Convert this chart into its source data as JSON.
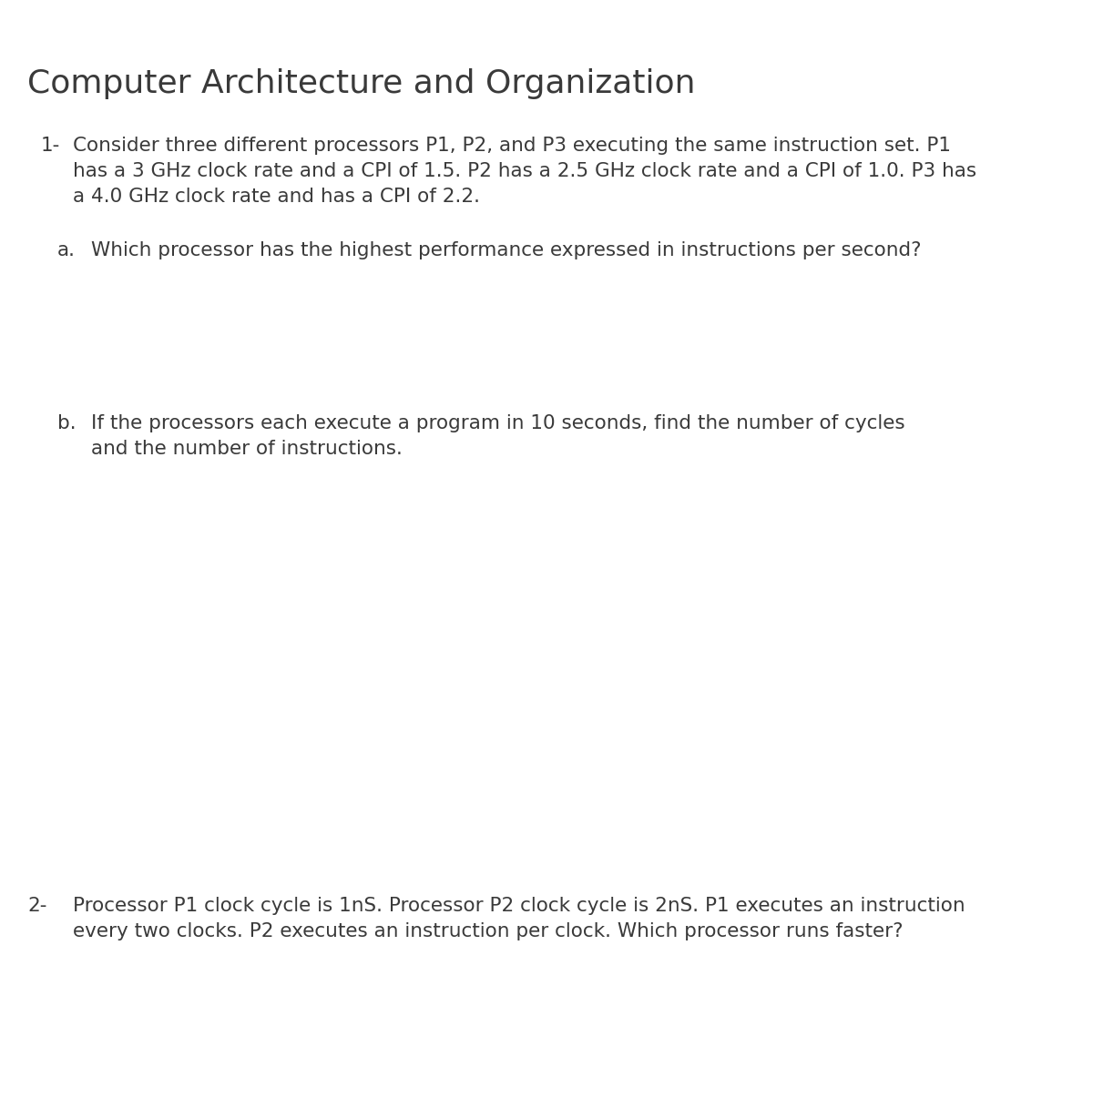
{
  "title": "Computer Architecture and Organization",
  "title_fontsize": 26,
  "background_color": "#ffffff",
  "text_color": "#3a3a3a",
  "body_fontsize": 15.5,
  "q1_number": "1-",
  "q1_line1": "Consider three different processors P1, P2, and P3 executing the same instruction set. P1",
  "q1_line2": "has a 3 GHz clock rate and a CPI of 1.5. P2 has a 2.5 GHz clock rate and a CPI of 1.0. P3 has",
  "q1_line3": "a 4.0 GHz clock rate and has a CPI of 2.2.",
  "qa_label": "a.",
  "qa_text": "Which processor has the highest performance expressed in instructions per second?",
  "qb_label": "b.",
  "qb_line1": "If the processors each execute a program in 10 seconds, find the number of cycles",
  "qb_line2": "and the number of instructions.",
  "q2_number": "2-",
  "q2_line1": "Processor P1 clock cycle is 1nS. Processor P2 clock cycle is 2nS. P1 executes an instruction",
  "q2_line2": "every two clocks. P2 executes an instruction per clock. Which processor runs faster?"
}
